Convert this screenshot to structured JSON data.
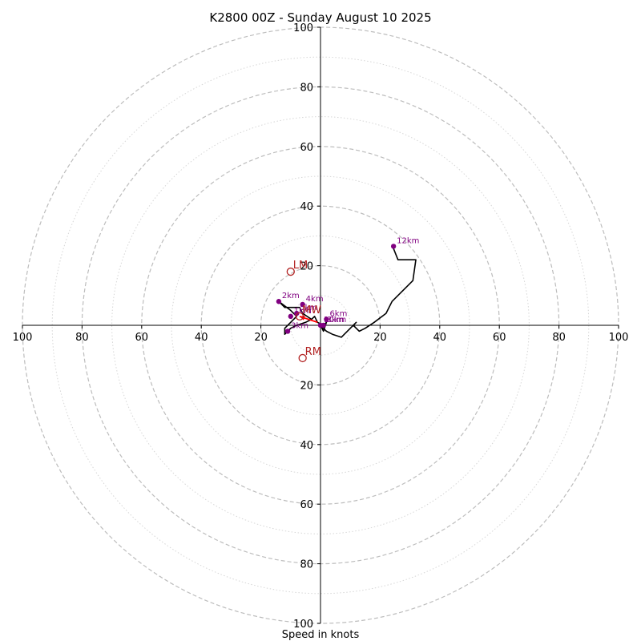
{
  "chart_data": {
    "type": "hodograph",
    "title": "K2800 00Z - Sunday August 10 2025",
    "xlabel": "Speed in knots",
    "ylabel": "",
    "range": [
      -100,
      100
    ],
    "major_rings": [
      20,
      40,
      60,
      80,
      100
    ],
    "minor_rings": [
      10,
      30,
      50,
      70,
      90
    ],
    "ticks": {
      "x": [
        "100",
        "80",
        "60",
        "40",
        "20",
        "20",
        "40",
        "60",
        "80",
        "100"
      ],
      "y": [
        "100",
        "80",
        "60",
        "40",
        "20",
        "20",
        "40",
        "60",
        "80",
        "100"
      ]
    },
    "tick_values": [
      -100,
      -80,
      -60,
      -40,
      -20,
      20,
      40,
      60,
      80,
      100
    ],
    "grid": true,
    "hodograph": [
      [
        -3,
        2
      ],
      [
        -6,
        4
      ],
      [
        -7,
        6
      ],
      [
        -9,
        6
      ],
      [
        -12,
        6
      ],
      [
        -14,
        8
      ],
      [
        -10,
        5
      ],
      [
        -8,
        3
      ],
      [
        -10,
        1
      ],
      [
        -12,
        -1
      ],
      [
        -12,
        -3
      ],
      [
        -11,
        -2
      ],
      [
        -10,
        -1
      ],
      [
        -8,
        0
      ],
      [
        -5,
        1
      ],
      [
        -3,
        2
      ],
      [
        -2,
        3
      ],
      [
        -1,
        1
      ],
      [
        1,
        0
      ],
      [
        2,
        1
      ],
      [
        1,
        -2
      ],
      [
        0,
        0
      ],
      [
        2,
        -2
      ],
      [
        4,
        -3
      ],
      [
        7,
        -4
      ],
      [
        10,
        -1
      ],
      [
        12,
        1
      ],
      [
        11,
        0
      ],
      [
        13,
        -2
      ],
      [
        15,
        -1
      ],
      [
        18,
        1
      ],
      [
        22,
        4
      ],
      [
        24,
        8
      ],
      [
        27,
        11
      ],
      [
        31,
        15
      ],
      [
        32,
        22
      ],
      [
        26,
        22
      ],
      [
        24,
        27
      ]
    ],
    "height_markers": [
      {
        "label": "12km",
        "u": 24.5,
        "v": 26.5
      },
      {
        "label": "2km",
        "u": -14,
        "v": 8
      },
      {
        "label": "4km",
        "u": -6,
        "v": 7
      },
      {
        "label": "6km",
        "u": 2,
        "v": 2
      },
      {
        "label": "8km",
        "u": 1,
        "v": 0
      },
      {
        "label": "10km",
        "u": 0,
        "v": 0
      },
      {
        "label": "1km",
        "u": -10,
        "v": 3
      },
      {
        "label": "3km",
        "u": -11,
        "v": -2
      },
      {
        "label": "5km",
        "u": -8,
        "v": 4
      }
    ],
    "storm_motions": [
      {
        "label": "LM",
        "u": -10,
        "v": 18
      },
      {
        "label": "MW",
        "u": -7,
        "v": 3
      },
      {
        "label": "RM",
        "u": -6,
        "v": -11
      }
    ],
    "shear_arrow": {
      "u0": -1,
      "v0": 1,
      "u1": -7,
      "v1": 3,
      "color": "#ff0000"
    },
    "colors": {
      "hodograph": "#000000",
      "markers": "#800080",
      "storm_motion": "#b22222"
    }
  }
}
